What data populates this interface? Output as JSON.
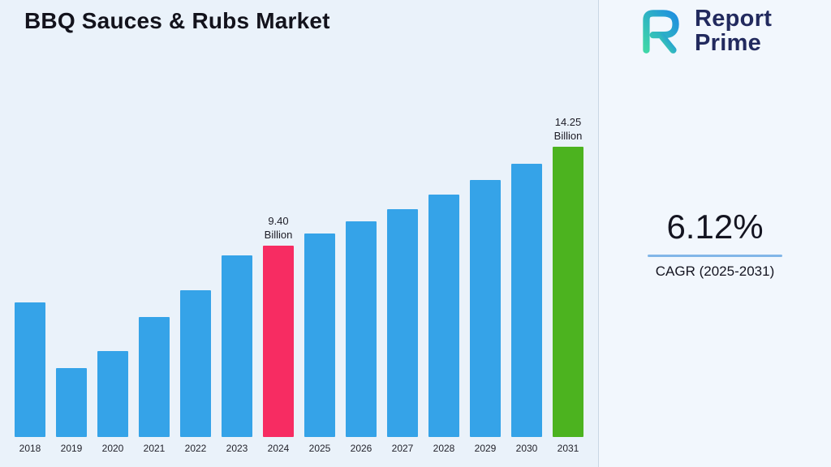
{
  "page": {
    "title": "BBQ Sauces & Rubs Market"
  },
  "logo": {
    "line1": "Report",
    "line2": "Prime",
    "gradient_start": "#3fd6a8",
    "gradient_end": "#1f8fe0",
    "text_color": "#222a5e"
  },
  "cagr": {
    "value": "6.12%",
    "label": "CAGR (2025-2031)",
    "underline_color": "#82b6e8"
  },
  "chart_data": {
    "type": "bar",
    "title": "BBQ Sauces & Rubs Market",
    "categories": [
      "2018",
      "2019",
      "2020",
      "2021",
      "2022",
      "2023",
      "2024",
      "2025",
      "2026",
      "2027",
      "2028",
      "2029",
      "2030",
      "2031"
    ],
    "values": [
      6.6,
      3.4,
      4.2,
      5.9,
      7.2,
      8.9,
      9.4,
      10.0,
      10.6,
      11.2,
      11.9,
      12.6,
      13.4,
      14.25
    ],
    "ylim": [
      0,
      15
    ],
    "xlabel": "",
    "ylabel": "",
    "grid": false,
    "legend": false,
    "bar_color": "#35a3e8",
    "highlighted_bars": [
      {
        "category": "2024",
        "color": "#f72c62",
        "label_lines": [
          "9.40",
          "Billion"
        ]
      },
      {
        "category": "2031",
        "color": "#4cb31f",
        "label_lines": [
          "14.25",
          "Billion"
        ]
      }
    ]
  }
}
